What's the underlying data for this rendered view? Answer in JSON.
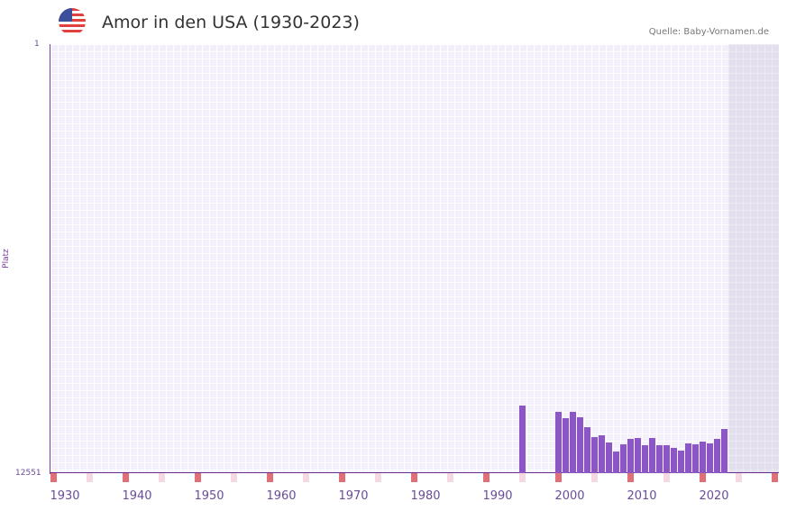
{
  "header": {
    "title": "Amor in den USA (1930-2023)",
    "source": "Quelle: Baby-Vornamen.de",
    "flag_icon": "usa-flag-icon"
  },
  "axis": {
    "ylabel": "Platz",
    "ytop": "1",
    "ybottom": "12551"
  },
  "xticks": [
    "1930",
    "1940",
    "1950",
    "1960",
    "1970",
    "1980",
    "1990",
    "2000",
    "2010",
    "2020"
  ],
  "colors": {
    "bar": "#8c56c6",
    "marker_decade": "#e07078",
    "marker_half": "#f5d8e0",
    "axis": "#6a2d8f"
  },
  "chart_data": {
    "type": "bar",
    "title": "Amor in den USA (1930-2023)",
    "xlabel": "",
    "ylabel": "Platz",
    "ylim": [
      12551,
      1
    ],
    "x": [
      1995,
      2000,
      2001,
      2002,
      2003,
      2004,
      2005,
      2006,
      2007,
      2008,
      2009,
      2010,
      2011,
      2012,
      2013,
      2014,
      2015,
      2016,
      2017,
      2018,
      2019,
      2020,
      2021,
      2022,
      2023
    ],
    "values": [
      10570,
      10750,
      10940,
      10750,
      10910,
      11200,
      11490,
      11440,
      11650,
      11910,
      11700,
      11540,
      11520,
      11730,
      11520,
      11730,
      11730,
      11810,
      11890,
      11680,
      11700,
      11620,
      11680,
      11540,
      11250
    ],
    "note": "Rank (Platz); lower bar = worse rank; y axis inverted from 1 (top) to 12551 (bottom)"
  }
}
